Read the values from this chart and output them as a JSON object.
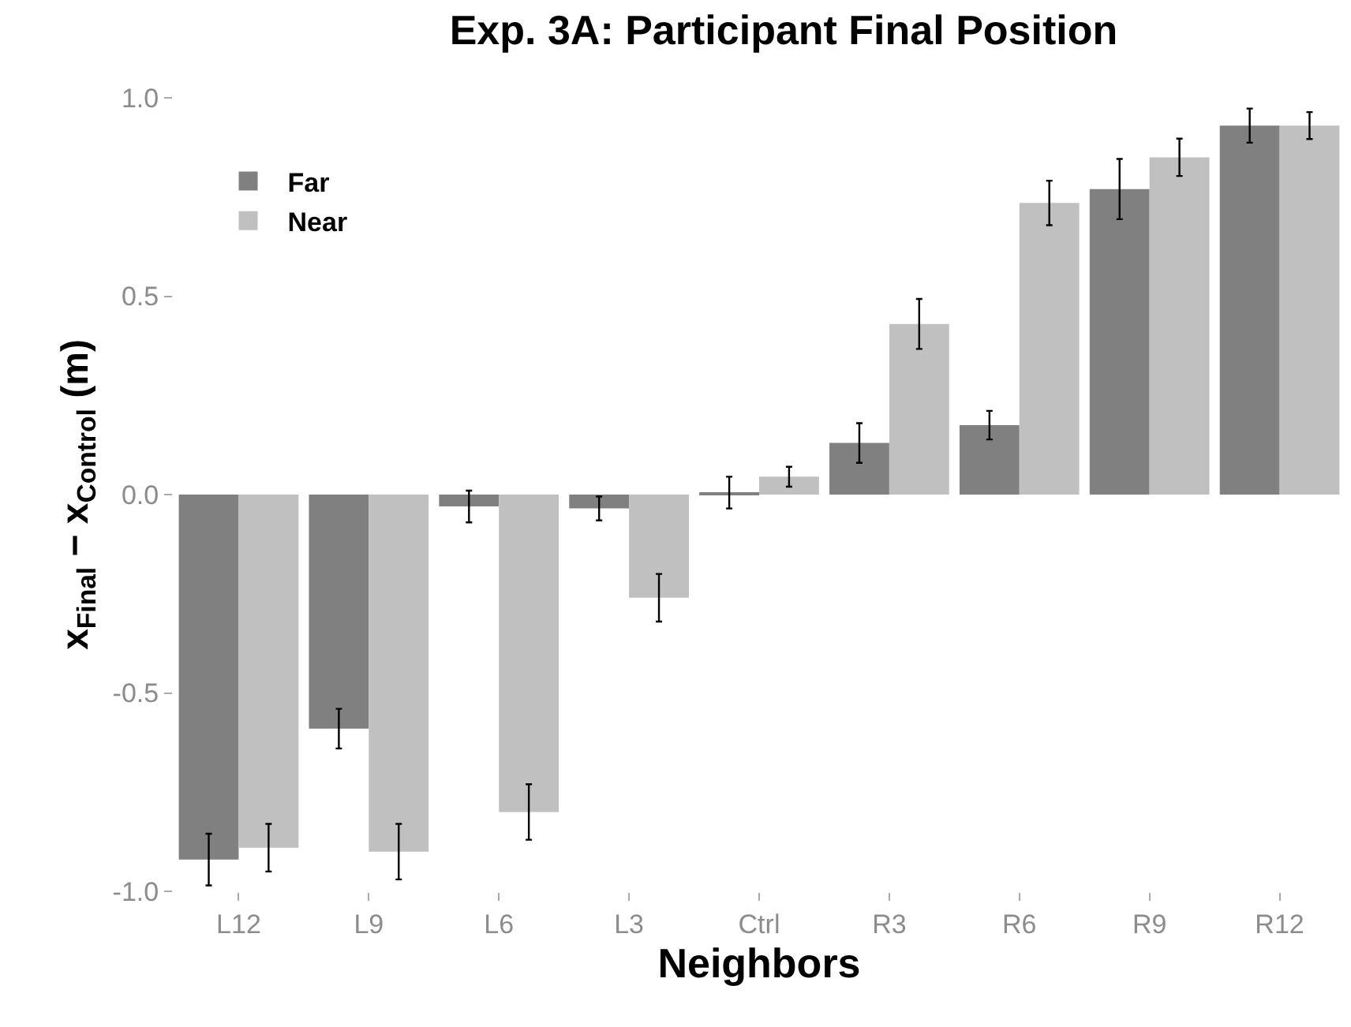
{
  "chart_data": {
    "type": "bar",
    "title": "Exp. 3A: Participant Final Position",
    "xlabel": "Neighbors",
    "ylabel": "x$_{Final}$ − x$_{Control}$ (m)",
    "categories": [
      "L12",
      "L9",
      "L6",
      "L3",
      "Ctrl",
      "R3",
      "R6",
      "R9",
      "R12"
    ],
    "series": [
      {
        "name": "Far",
        "color": "#808080",
        "values": [
          -0.92,
          -0.59,
          -0.03,
          -0.035,
          0.005,
          0.13,
          0.175,
          0.77,
          0.93
        ],
        "errors": [
          0.065,
          0.05,
          0.04,
          0.03,
          0.04,
          0.05,
          0.036,
          0.076,
          0.043
        ]
      },
      {
        "name": "Near",
        "color": "#c0c0c0",
        "values": [
          -0.89,
          -0.9,
          -0.8,
          -0.26,
          0.045,
          0.43,
          0.735,
          0.85,
          0.93
        ],
        "errors": [
          0.06,
          0.07,
          0.07,
          0.06,
          0.025,
          0.063,
          0.056,
          0.047,
          0.034
        ]
      }
    ],
    "ylim": [
      -1,
      1
    ],
    "yticks": [
      {
        "value": -1,
        "label": "-1.0"
      },
      {
        "value": -0.5,
        "label": "-0.5"
      },
      {
        "value": 0,
        "label": "0.0"
      },
      {
        "value": 0.5,
        "label": "0.5"
      },
      {
        "value": 1,
        "label": "1.0"
      }
    ],
    "legend": "top left"
  }
}
